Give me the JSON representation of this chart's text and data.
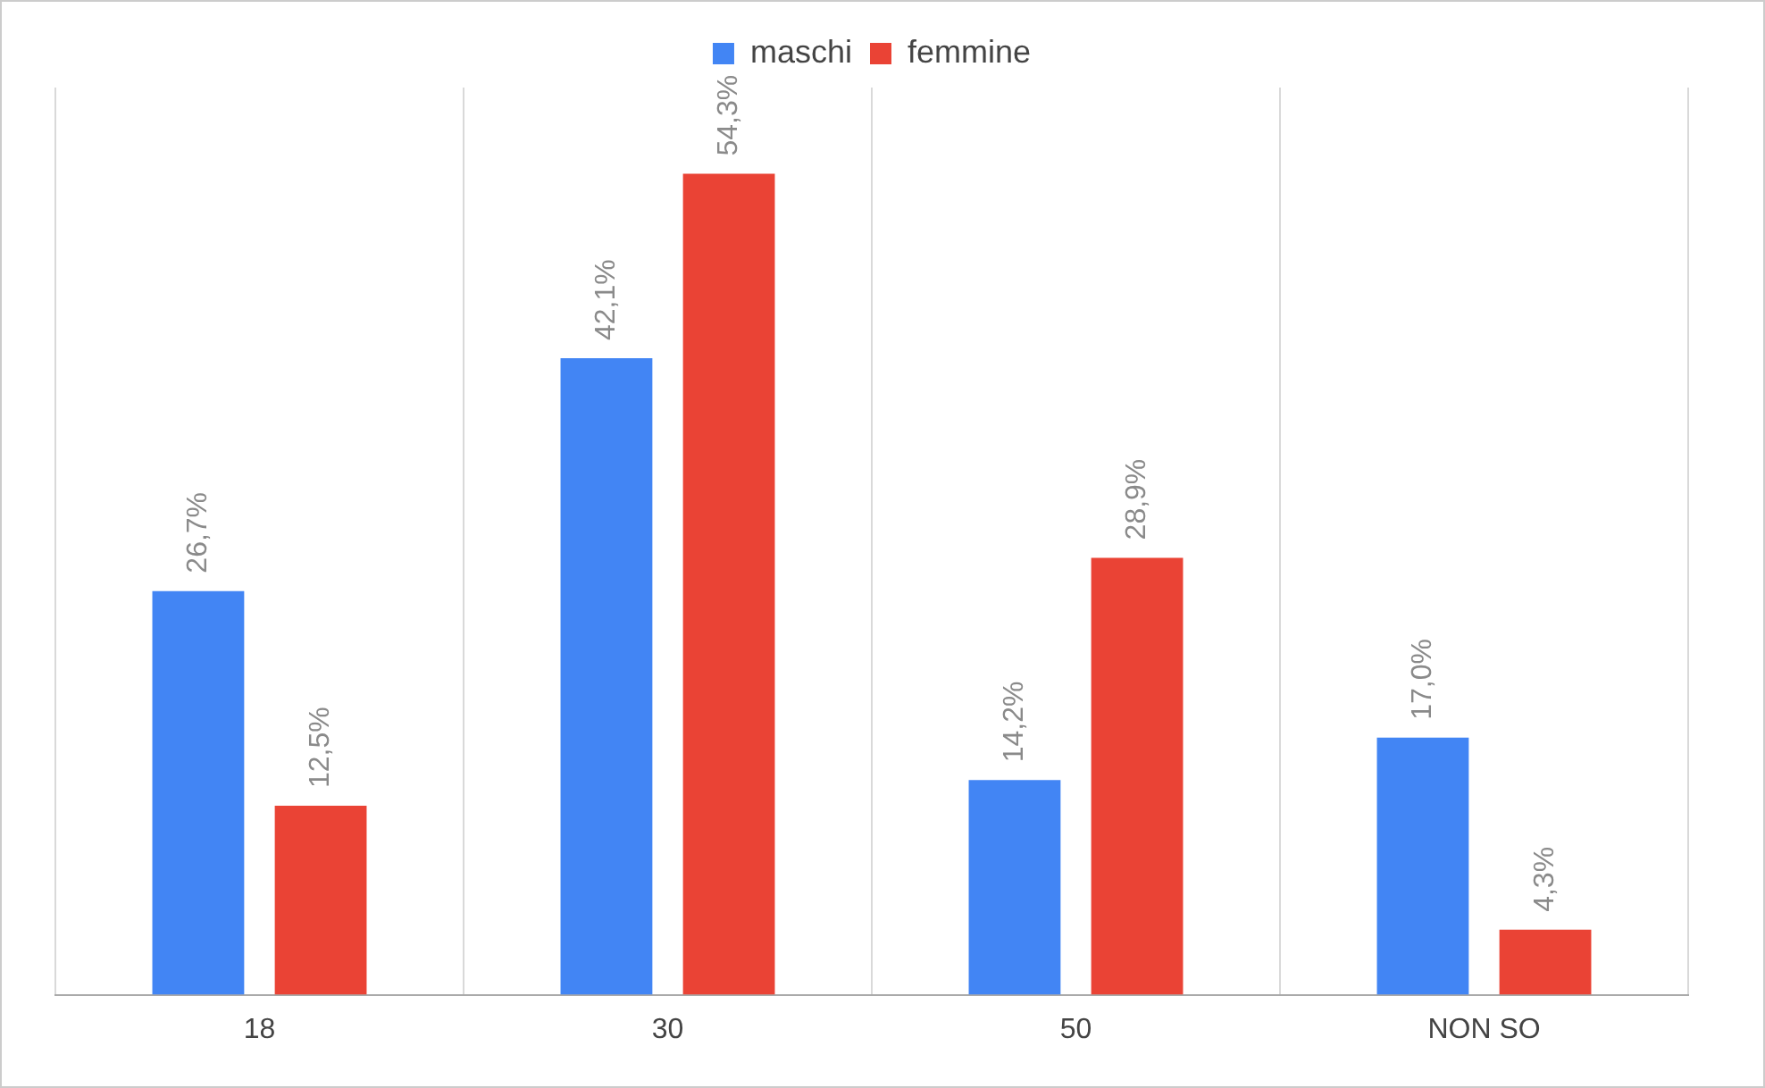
{
  "chart_data": {
    "type": "bar",
    "categories": [
      "18",
      "30",
      "50",
      "NON SO"
    ],
    "series": [
      {
        "name": "maschi",
        "color": "#4285f4",
        "values": [
          26.7,
          42.1,
          14.2,
          17.0
        ],
        "value_labels": [
          "26,7%",
          "42,1%",
          "14,2%",
          "17,0%"
        ]
      },
      {
        "name": "femmine",
        "color": "#ea4335",
        "values": [
          12.5,
          54.3,
          28.9,
          4.3
        ],
        "value_labels": [
          "12,5%",
          "54,3%",
          "28,9%",
          "4,3%"
        ]
      }
    ],
    "grid": "x",
    "legend": "top"
  }
}
